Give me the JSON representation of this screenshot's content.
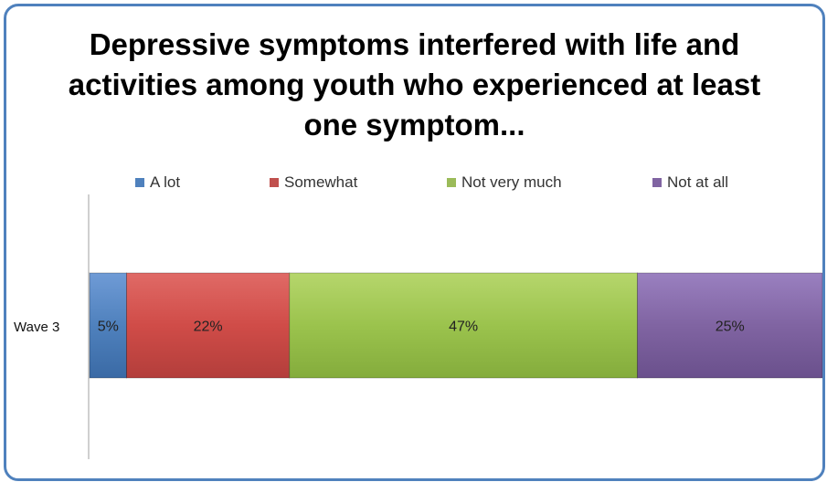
{
  "chart_data": {
    "type": "bar",
    "orientation": "horizontal",
    "stacked": true,
    "title": "Depressive symptoms interfered with life and activities among youth who experienced at least one symptom...",
    "categories": [
      "Wave 3"
    ],
    "series": [
      {
        "name": "A lot",
        "values": [
          5
        ],
        "label": "5%",
        "color": "#4f81bd"
      },
      {
        "name": "Somewhat",
        "values": [
          22
        ],
        "label": "22%",
        "color": "#c0504d"
      },
      {
        "name": "Not very much",
        "values": [
          47
        ],
        "label": "47%",
        "color": "#9bbb59"
      },
      {
        "name": "Not at all",
        "values": [
          25
        ],
        "label": "25%",
        "color": "#8064a2"
      }
    ],
    "xlim": [
      0,
      100
    ],
    "grid": false,
    "legend_position": "top"
  },
  "colors": {
    "border": "#4f81bd",
    "axis": "#a0a0a0"
  }
}
